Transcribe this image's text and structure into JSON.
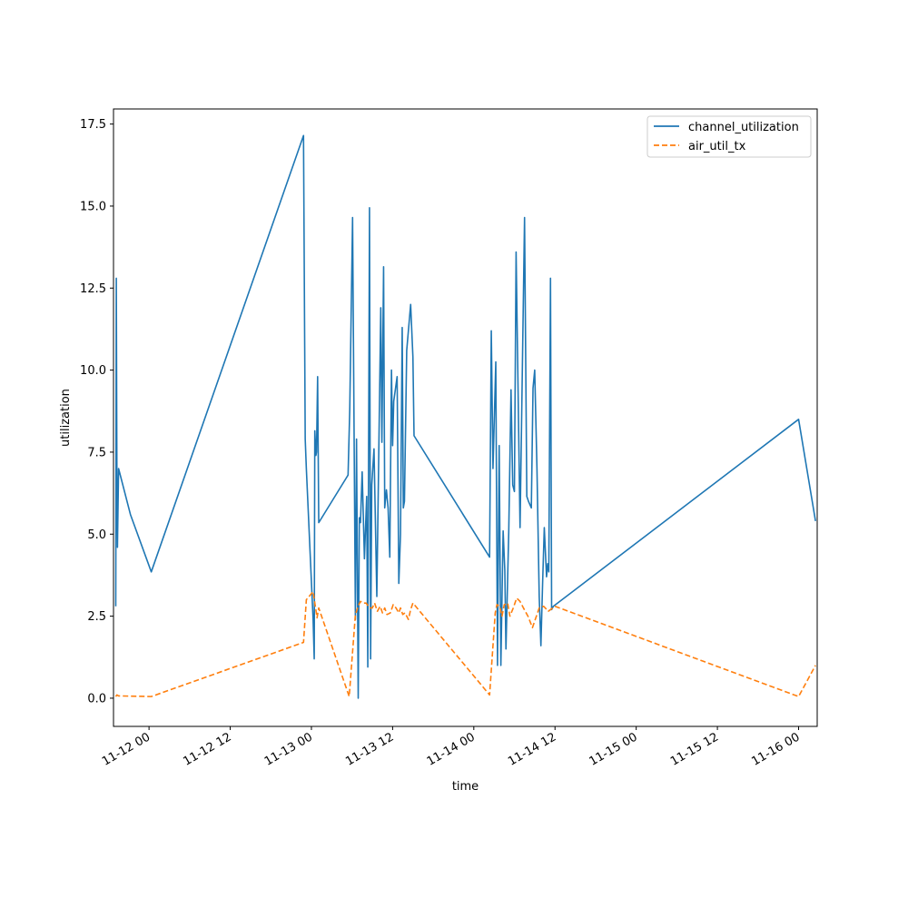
{
  "chart_data": {
    "type": "line",
    "title": "",
    "xlabel": "time",
    "ylabel": "utilization",
    "x_range": [
      "2023-11-11 18:45",
      "2023-11-16 02:45"
    ],
    "ylim": [
      -0.86,
      17.96
    ],
    "x_ticks": [
      {
        "t": "2023-11-12 00:00",
        "label": "11-12 00"
      },
      {
        "t": "2023-11-12 12:00",
        "label": "11-12 12"
      },
      {
        "t": "2023-11-13 00:00",
        "label": "11-13 00"
      },
      {
        "t": "2023-11-13 12:00",
        "label": "11-13 12"
      },
      {
        "t": "2023-11-14 00:00",
        "label": "11-14 00"
      },
      {
        "t": "2023-11-14 12:00",
        "label": "11-14 12"
      },
      {
        "t": "2023-11-15 00:00",
        "label": "11-15 00"
      },
      {
        "t": "2023-11-15 12:00",
        "label": "11-15 12"
      },
      {
        "t": "2023-11-16 00:00",
        "label": "11-16 00"
      }
    ],
    "y_ticks": [
      {
        "v": 0.0,
        "label": "0.0"
      },
      {
        "v": 2.5,
        "label": "2.5"
      },
      {
        "v": 5.0,
        "label": "5.0"
      },
      {
        "v": 7.5,
        "label": "7.5"
      },
      {
        "v": 10.0,
        "label": "10.0"
      },
      {
        "v": 12.5,
        "label": "12.5"
      },
      {
        "v": 15.0,
        "label": "15.0"
      },
      {
        "v": 17.5,
        "label": "17.5"
      }
    ],
    "grid": false,
    "legend_position": "top-right",
    "series": [
      {
        "name": "channel_utilization",
        "color": "#1f77b4",
        "style": "solid",
        "points": [
          [
            "2023-11-11 19:05",
            2.8
          ],
          [
            "2023-11-11 19:10",
            12.8
          ],
          [
            "2023-11-11 19:15",
            7.0
          ],
          [
            "2023-11-11 19:20",
            4.6
          ],
          [
            "2023-11-11 19:30",
            7.0
          ],
          [
            "2023-11-11 21:15",
            5.6
          ],
          [
            "2023-11-12 00:20",
            3.85
          ],
          [
            "2023-11-12 22:50",
            17.15
          ],
          [
            "2023-11-12 23:05",
            7.9
          ],
          [
            "2023-11-12 23:15",
            7.0
          ],
          [
            "2023-11-13 00:15",
            2.4
          ],
          [
            "2023-11-13 00:25",
            1.2
          ],
          [
            "2023-11-13 00:30",
            8.15
          ],
          [
            "2023-11-13 00:40",
            7.4
          ],
          [
            "2023-11-13 00:45",
            7.5
          ],
          [
            "2023-11-13 00:55",
            9.8
          ],
          [
            "2023-11-13 01:05",
            5.35
          ],
          [
            "2023-11-13 05:25",
            6.8
          ],
          [
            "2023-11-13 05:40",
            8.8
          ],
          [
            "2023-11-13 06:05",
            14.65
          ],
          [
            "2023-11-13 06:30",
            2.4
          ],
          [
            "2023-11-13 06:40",
            7.9
          ],
          [
            "2023-11-13 06:55",
            0.0
          ],
          [
            "2023-11-13 07:05",
            5.5
          ],
          [
            "2023-11-13 07:15",
            5.35
          ],
          [
            "2023-11-13 07:30",
            6.9
          ],
          [
            "2023-11-13 07:50",
            4.25
          ],
          [
            "2023-11-13 08:10",
            6.15
          ],
          [
            "2023-11-13 08:20",
            0.95
          ],
          [
            "2023-11-13 08:35",
            14.95
          ],
          [
            "2023-11-13 08:45",
            1.2
          ],
          [
            "2023-11-13 08:55",
            6.5
          ],
          [
            "2023-11-13 09:15",
            7.6
          ],
          [
            "2023-11-13 09:40",
            3.1
          ],
          [
            "2023-11-13 10:15",
            11.9
          ],
          [
            "2023-11-13 10:25",
            7.8
          ],
          [
            "2023-11-13 10:40",
            13.15
          ],
          [
            "2023-11-13 10:50",
            5.8
          ],
          [
            "2023-11-13 11:05",
            6.35
          ],
          [
            "2023-11-13 11:20",
            5.8
          ],
          [
            "2023-11-13 11:35",
            4.3
          ],
          [
            "2023-11-13 11:50",
            10.0
          ],
          [
            "2023-11-13 12:00",
            7.7
          ],
          [
            "2023-11-13 12:10",
            9.05
          ],
          [
            "2023-11-13 12:40",
            9.8
          ],
          [
            "2023-11-13 12:55",
            3.5
          ],
          [
            "2023-11-13 13:10",
            5.0
          ],
          [
            "2023-11-13 13:25",
            11.3
          ],
          [
            "2023-11-13 13:35",
            5.8
          ],
          [
            "2023-11-13 13:45",
            6.0
          ],
          [
            "2023-11-13 14:05",
            10.6
          ],
          [
            "2023-11-13 14:40",
            12.0
          ],
          [
            "2023-11-13 15:00",
            10.4
          ],
          [
            "2023-11-13 15:10",
            8.0
          ],
          [
            "2023-11-14 02:20",
            4.3
          ],
          [
            "2023-11-14 02:35",
            11.2
          ],
          [
            "2023-11-14 02:50",
            7.0
          ],
          [
            "2023-11-14 03:15",
            10.25
          ],
          [
            "2023-11-14 03:30",
            1.0
          ],
          [
            "2023-11-14 03:45",
            7.7
          ],
          [
            "2023-11-14 04:00",
            1.0
          ],
          [
            "2023-11-14 04:20",
            5.1
          ],
          [
            "2023-11-14 04:35",
            3.9
          ],
          [
            "2023-11-14 04:45",
            1.5
          ],
          [
            "2023-11-14 05:10",
            5.1
          ],
          [
            "2023-11-14 05:30",
            9.4
          ],
          [
            "2023-11-14 05:45",
            6.5
          ],
          [
            "2023-11-14 06:00",
            6.3
          ],
          [
            "2023-11-14 06:15",
            13.6
          ],
          [
            "2023-11-14 06:50",
            5.2
          ],
          [
            "2023-11-14 07:30",
            14.65
          ],
          [
            "2023-11-14 07:50",
            6.15
          ],
          [
            "2023-11-14 08:05",
            6.0
          ],
          [
            "2023-11-14 08:30",
            5.8
          ],
          [
            "2023-11-14 08:45",
            9.45
          ],
          [
            "2023-11-14 09:00",
            10.0
          ],
          [
            "2023-11-14 09:20",
            7.0
          ],
          [
            "2023-11-14 09:40",
            3.1
          ],
          [
            "2023-11-14 09:55",
            1.6
          ],
          [
            "2023-11-14 10:10",
            3.5
          ],
          [
            "2023-11-14 10:25",
            5.2
          ],
          [
            "2023-11-14 10:45",
            3.7
          ],
          [
            "2023-11-14 10:55",
            4.1
          ],
          [
            "2023-11-14 11:05",
            3.85
          ],
          [
            "2023-11-14 11:20",
            12.8
          ],
          [
            "2023-11-14 11:30",
            2.7
          ],
          [
            "2023-11-14 11:45",
            2.8
          ],
          [
            "2023-11-16 00:00",
            8.5
          ],
          [
            "2023-11-16 02:30",
            5.4
          ]
        ]
      },
      {
        "name": "air_util_tx",
        "color": "#ff7f0e",
        "style": "dashed",
        "points": [
          [
            "2023-11-11 19:05",
            0.05
          ],
          [
            "2023-11-11 19:15",
            0.1
          ],
          [
            "2023-11-11 19:30",
            0.07
          ],
          [
            "2023-11-12 00:20",
            0.05
          ],
          [
            "2023-11-12 22:50",
            1.7
          ],
          [
            "2023-11-12 23:15",
            3.0
          ],
          [
            "2023-11-13 00:15",
            3.25
          ],
          [
            "2023-11-13 00:50",
            2.45
          ],
          [
            "2023-11-13 01:05",
            2.75
          ],
          [
            "2023-11-13 05:35",
            0.05
          ],
          [
            "2023-11-13 06:30",
            2.55
          ],
          [
            "2023-11-13 07:00",
            2.85
          ],
          [
            "2023-11-13 07:15",
            2.95
          ],
          [
            "2023-11-13 07:40",
            2.9
          ],
          [
            "2023-11-13 08:05",
            2.9
          ],
          [
            "2023-11-13 08:35",
            2.75
          ],
          [
            "2023-11-13 09:00",
            2.75
          ],
          [
            "2023-11-13 09:20",
            2.9
          ],
          [
            "2023-11-13 09:45",
            2.65
          ],
          [
            "2023-11-13 10:10",
            2.8
          ],
          [
            "2023-11-13 10:30",
            2.6
          ],
          [
            "2023-11-13 10:50",
            2.75
          ],
          [
            "2023-11-13 11:10",
            2.55
          ],
          [
            "2023-11-13 11:40",
            2.6
          ],
          [
            "2023-11-13 12:05",
            2.85
          ],
          [
            "2023-11-13 12:30",
            2.75
          ],
          [
            "2023-11-13 12:55",
            2.6
          ],
          [
            "2023-11-13 13:10",
            2.75
          ],
          [
            "2023-11-13 13:30",
            2.55
          ],
          [
            "2023-11-13 13:50",
            2.6
          ],
          [
            "2023-11-13 14:20",
            2.4
          ],
          [
            "2023-11-13 14:40",
            2.7
          ],
          [
            "2023-11-13 15:00",
            2.9
          ],
          [
            "2023-11-14 02:20",
            0.1
          ],
          [
            "2023-11-14 03:10",
            2.6
          ],
          [
            "2023-11-14 03:25",
            2.85
          ],
          [
            "2023-11-14 03:50",
            2.8
          ],
          [
            "2023-11-14 04:10",
            2.5
          ],
          [
            "2023-11-14 04:30",
            2.85
          ],
          [
            "2023-11-14 05:00",
            2.9
          ],
          [
            "2023-11-14 05:20",
            2.5
          ],
          [
            "2023-11-14 05:50",
            2.75
          ],
          [
            "2023-11-14 06:20",
            3.05
          ],
          [
            "2023-11-14 06:50",
            2.95
          ],
          [
            "2023-11-14 07:20",
            2.75
          ],
          [
            "2023-11-14 08:00",
            2.5
          ],
          [
            "2023-11-14 08:40",
            2.15
          ],
          [
            "2023-11-14 09:40",
            2.75
          ],
          [
            "2023-11-14 10:20",
            2.8
          ],
          [
            "2023-11-14 11:00",
            2.65
          ],
          [
            "2023-11-14 12:00",
            2.8
          ],
          [
            "2023-11-16 00:00",
            0.05
          ],
          [
            "2023-11-16 02:30",
            1.0
          ]
        ]
      }
    ]
  }
}
